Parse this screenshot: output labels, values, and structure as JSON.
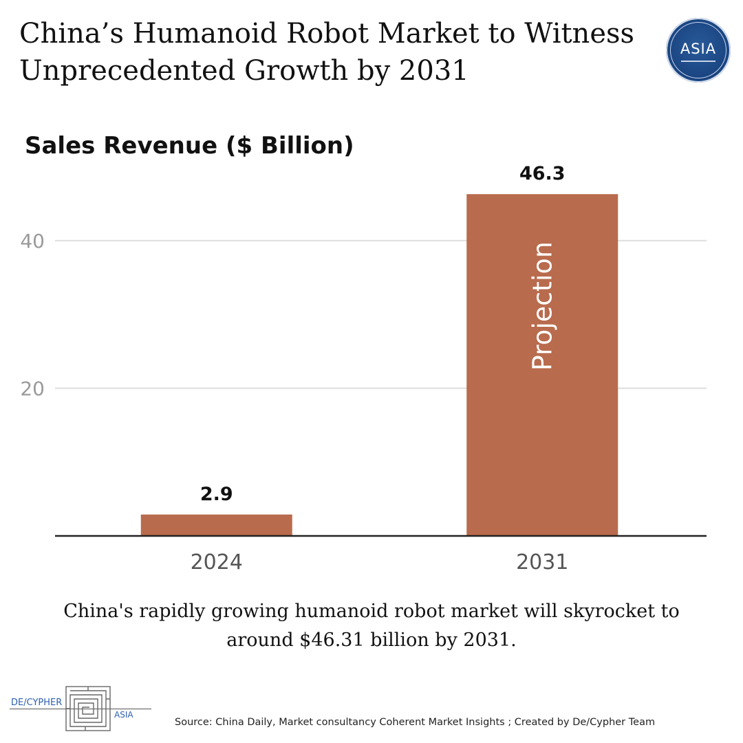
{
  "headline": "China’s Humanoid Robot Market to Witness Unprecedented Growth by 2031",
  "logo": {
    "text": "ASIA"
  },
  "chart_data": {
    "type": "bar",
    "title": "Sales Revenue ($ Billion)",
    "categories": [
      "2024",
      "2031"
    ],
    "values": [
      2.9,
      46.3
    ],
    "data_labels": [
      "2.9",
      "46.3"
    ],
    "bar_annotations": [
      "",
      "Projection"
    ],
    "y_ticks": [
      "20",
      "40"
    ],
    "ylim": [
      0,
      48
    ],
    "grid": true,
    "bar_color": "#b96b4d"
  },
  "caption": "China's rapidly growing humanoid robot market will skyrocket to around $46.31 billion by 2031.",
  "brand": {
    "left": "DE/CYPHER",
    "right": "ASIA"
  },
  "source": "Source: China Daily, Market consultancy Coherent Market Insights ; Created by De/Cypher Team"
}
